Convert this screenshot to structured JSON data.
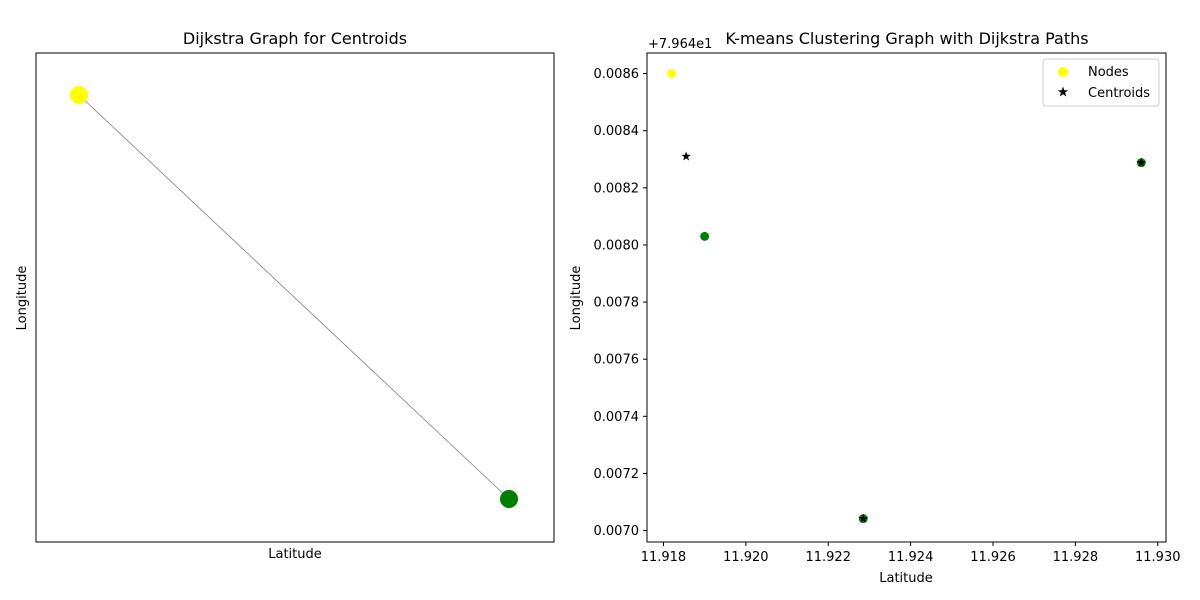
{
  "chart_data": [
    {
      "type": "network",
      "title": "Dijkstra Graph for Centroids",
      "xlabel": "Latitude",
      "ylabel": "Longitude",
      "nodes": [
        {
          "x": 0,
          "y": 1,
          "color": "#ffff00"
        },
        {
          "x": 1,
          "y": 0,
          "color": "#008000"
        }
      ],
      "edges": [
        [
          0,
          1
        ]
      ],
      "edge_color": "#808080",
      "axis_ticks": false
    },
    {
      "type": "scatter",
      "title": "K-means Clustering Graph with Dijkstra Paths",
      "xlabel": "Latitude",
      "ylabel": "Longitude",
      "y_offset_label": "+7.964e1",
      "xlim": [
        11.9176,
        11.9302
      ],
      "ylim": [
        79.64696,
        79.648672
      ],
      "xticks": [
        "11.918",
        "11.920",
        "11.922",
        "11.924",
        "11.926",
        "11.928",
        "11.930"
      ],
      "yticks": [
        "0.0070",
        "0.0072",
        "0.0074",
        "0.0076",
        "0.0078",
        "0.0080",
        "0.0082",
        "0.0084",
        "0.0086"
      ],
      "legend": {
        "position": "upper right",
        "entries": [
          "Nodes",
          "Centroids"
        ]
      },
      "series": [
        {
          "name": "Nodes",
          "marker": "circle",
          "points": [
            {
              "x": 11.9182,
              "y": 79.6486,
              "color": "#ffff00"
            },
            {
              "x": 11.919,
              "y": 79.64803,
              "color": "#008000"
            },
            {
              "x": 11.92285,
              "y": 79.647042,
              "color": "#008000"
            },
            {
              "x": 11.9296,
              "y": 79.648288,
              "color": "#008000"
            }
          ]
        },
        {
          "name": "Centroids",
          "marker": "star",
          "color": "#000000",
          "points": [
            {
              "x": 11.91855,
              "y": 79.64831
            },
            {
              "x": 11.92285,
              "y": 79.647042
            },
            {
              "x": 11.9296,
              "y": 79.648288
            }
          ]
        }
      ]
    }
  ]
}
